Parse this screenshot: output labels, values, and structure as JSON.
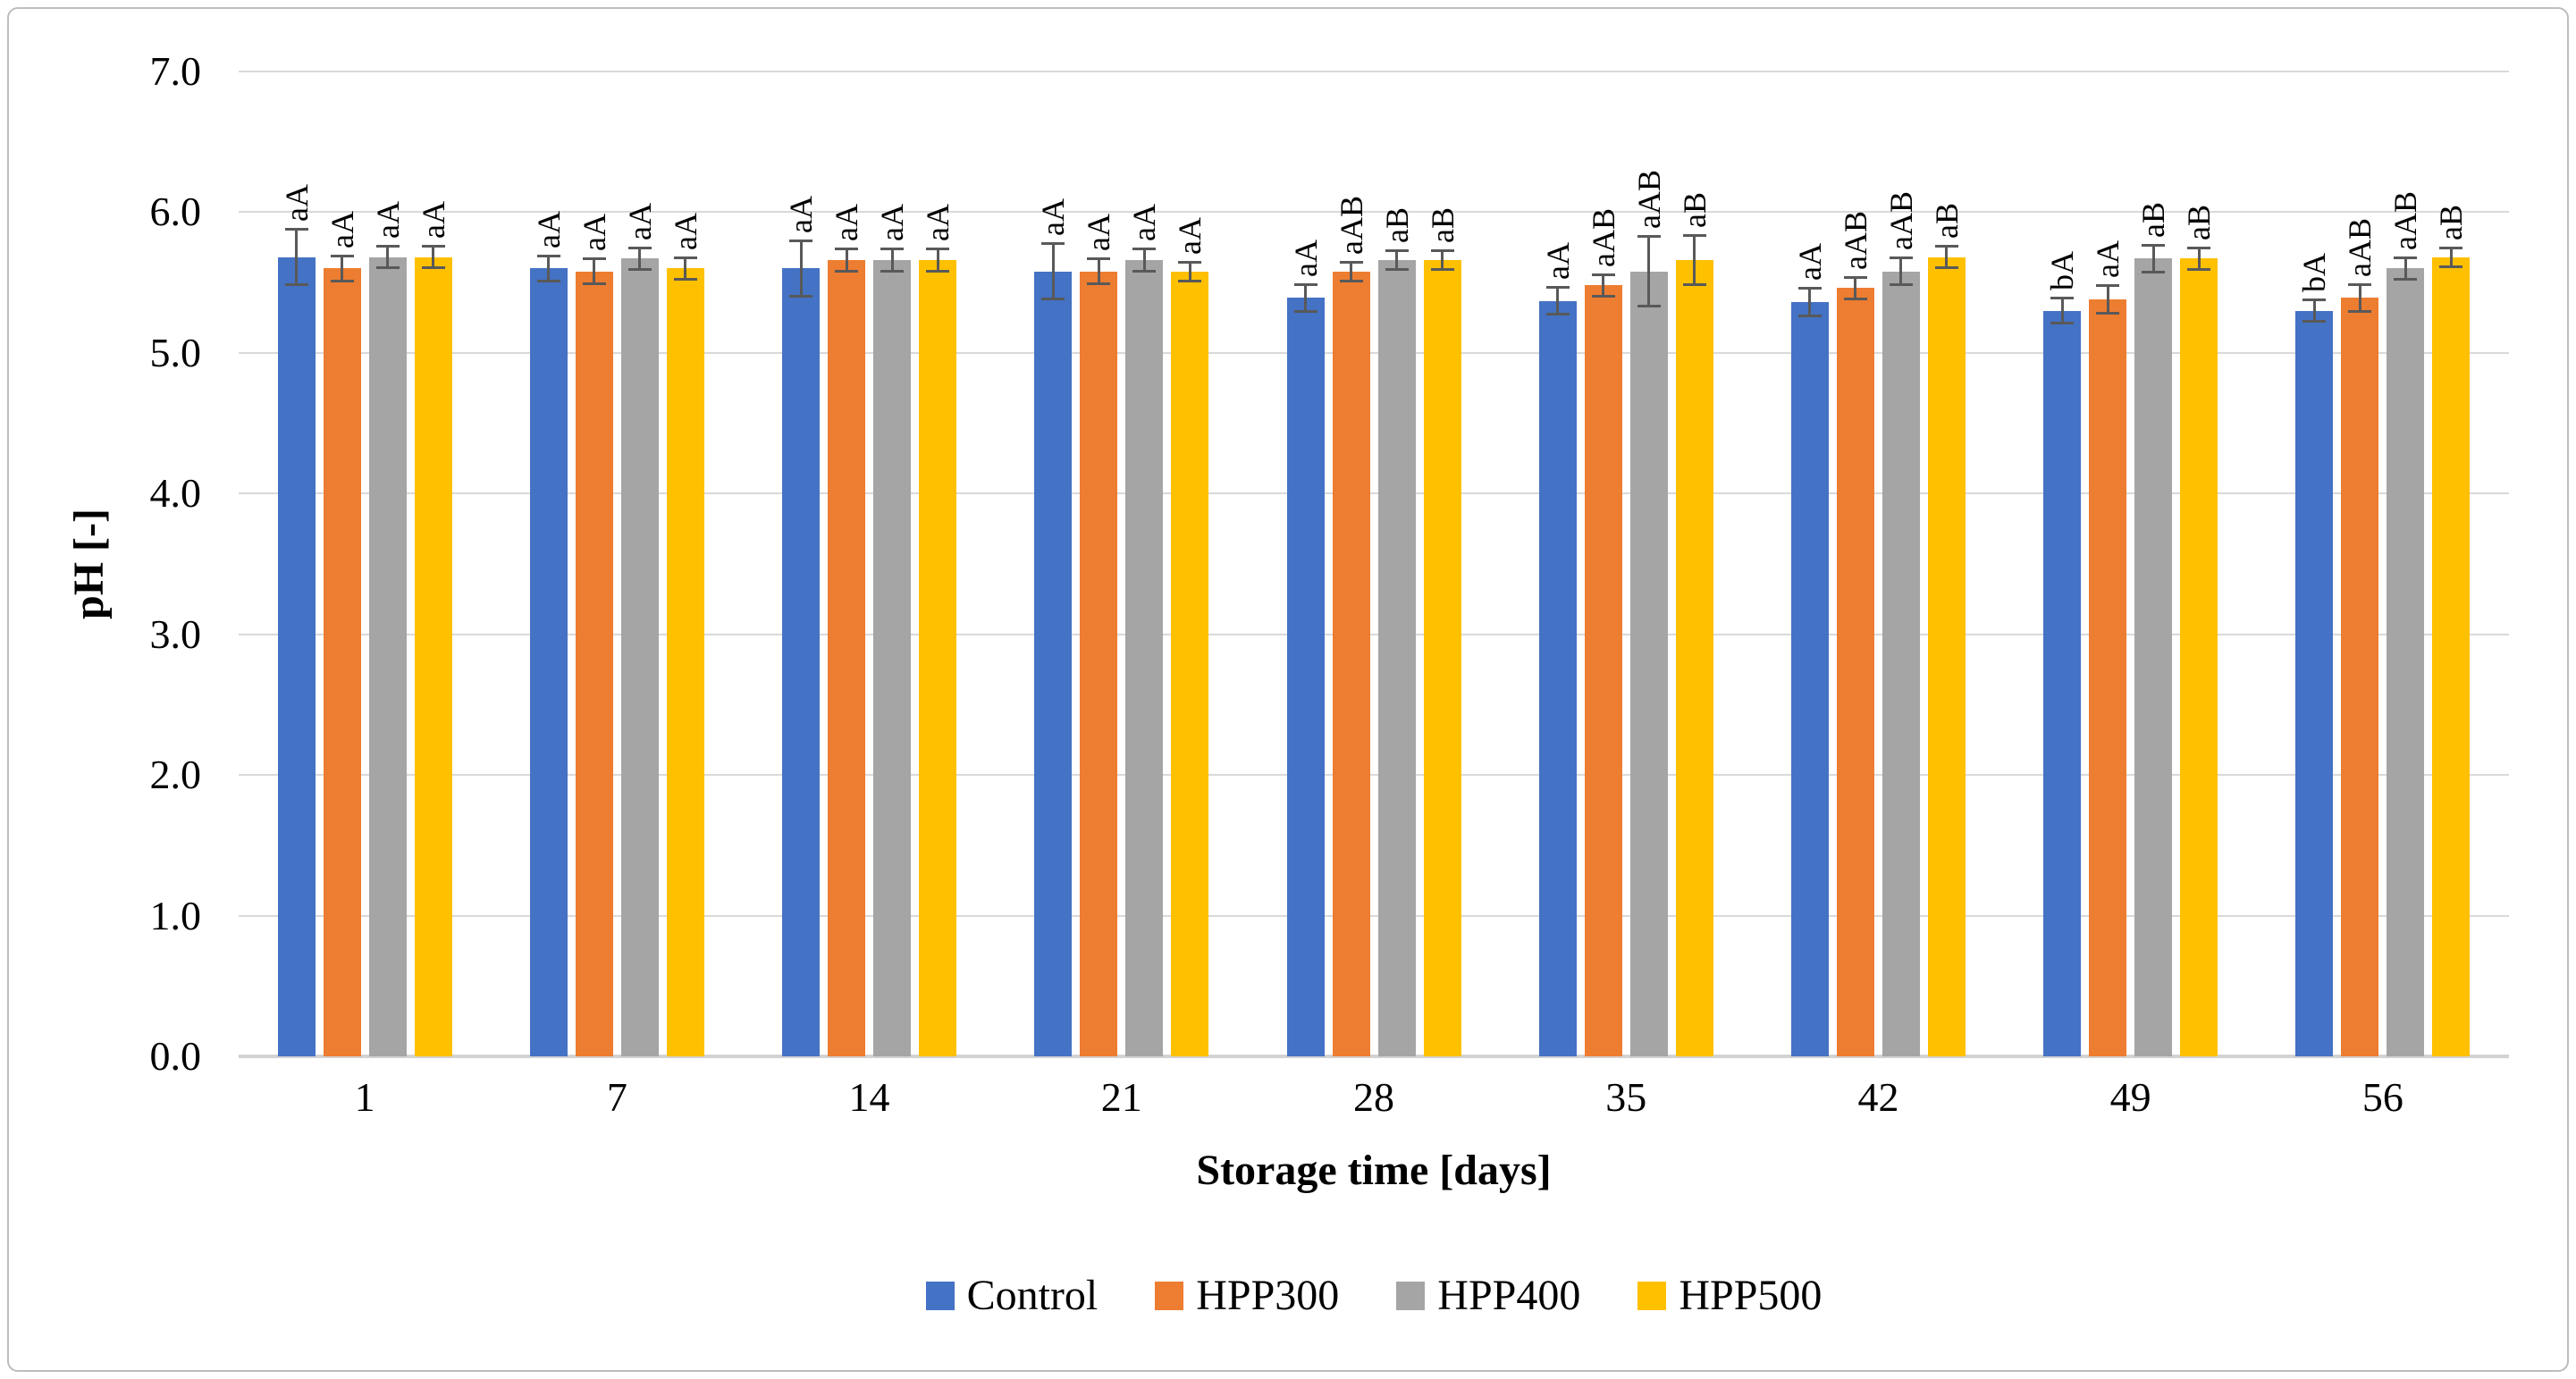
{
  "figure": {
    "background": "#ffffff",
    "border_color": "#bdbdbd"
  },
  "chart_data": {
    "type": "bar",
    "title": "",
    "xlabel": "Storage time [days]",
    "ylabel": "pH [-]",
    "ylim": [
      0,
      7
    ],
    "ytick_step": 1.0,
    "ytick_labels": [
      "0.0",
      "1.0",
      "2.0",
      "3.0",
      "4.0",
      "5.0",
      "6.0",
      "7.0"
    ],
    "grid": true,
    "gridline_color": "#d9d9d9",
    "error_bar_color": "#595959",
    "legend_position": "bottom",
    "categories": [
      "1",
      "7",
      "14",
      "21",
      "28",
      "35",
      "42",
      "49",
      "56"
    ],
    "series": [
      {
        "name": "Control",
        "color": "#4472C4",
        "values": [
          5.68,
          5.6,
          5.6,
          5.58,
          5.39,
          5.37,
          5.36,
          5.3,
          5.3
        ],
        "errors": [
          0.2,
          0.09,
          0.2,
          0.2,
          0.1,
          0.1,
          0.1,
          0.09,
          0.08
        ],
        "point_labels": [
          "aA",
          "aA",
          "aA",
          "aA",
          "aA",
          "aA",
          "aA",
          "bA",
          "bA"
        ]
      },
      {
        "name": "HPP300",
        "color": "#ED7D31",
        "values": [
          5.6,
          5.58,
          5.66,
          5.58,
          5.58,
          5.48,
          5.46,
          5.38,
          5.39
        ],
        "errors": [
          0.09,
          0.09,
          0.08,
          0.09,
          0.07,
          0.08,
          0.08,
          0.1,
          0.1
        ],
        "point_labels": [
          "aA",
          "aA",
          "aA",
          "aA",
          "aAB",
          "aAB",
          "aAB",
          "aA",
          "aAB"
        ]
      },
      {
        "name": "HPP400",
        "color": "#A5A5A5",
        "values": [
          5.68,
          5.67,
          5.66,
          5.66,
          5.66,
          5.58,
          5.58,
          5.67,
          5.6
        ],
        "errors": [
          0.08,
          0.08,
          0.08,
          0.08,
          0.07,
          0.25,
          0.1,
          0.1,
          0.08
        ],
        "point_labels": [
          "aA",
          "aA",
          "aA",
          "aA",
          "aB",
          "aAB",
          "aAB",
          "aB",
          "aAB"
        ]
      },
      {
        "name": "HPP500",
        "color": "#FFC000",
        "values": [
          5.68,
          5.6,
          5.66,
          5.58,
          5.66,
          5.66,
          5.68,
          5.67,
          5.68
        ],
        "errors": [
          0.08,
          0.08,
          0.08,
          0.07,
          0.07,
          0.18,
          0.08,
          0.08,
          0.07
        ],
        "point_labels": [
          "aA",
          "aA",
          "aA",
          "aA",
          "aB",
          "aB",
          "aB",
          "aB",
          "aB"
        ]
      }
    ]
  }
}
